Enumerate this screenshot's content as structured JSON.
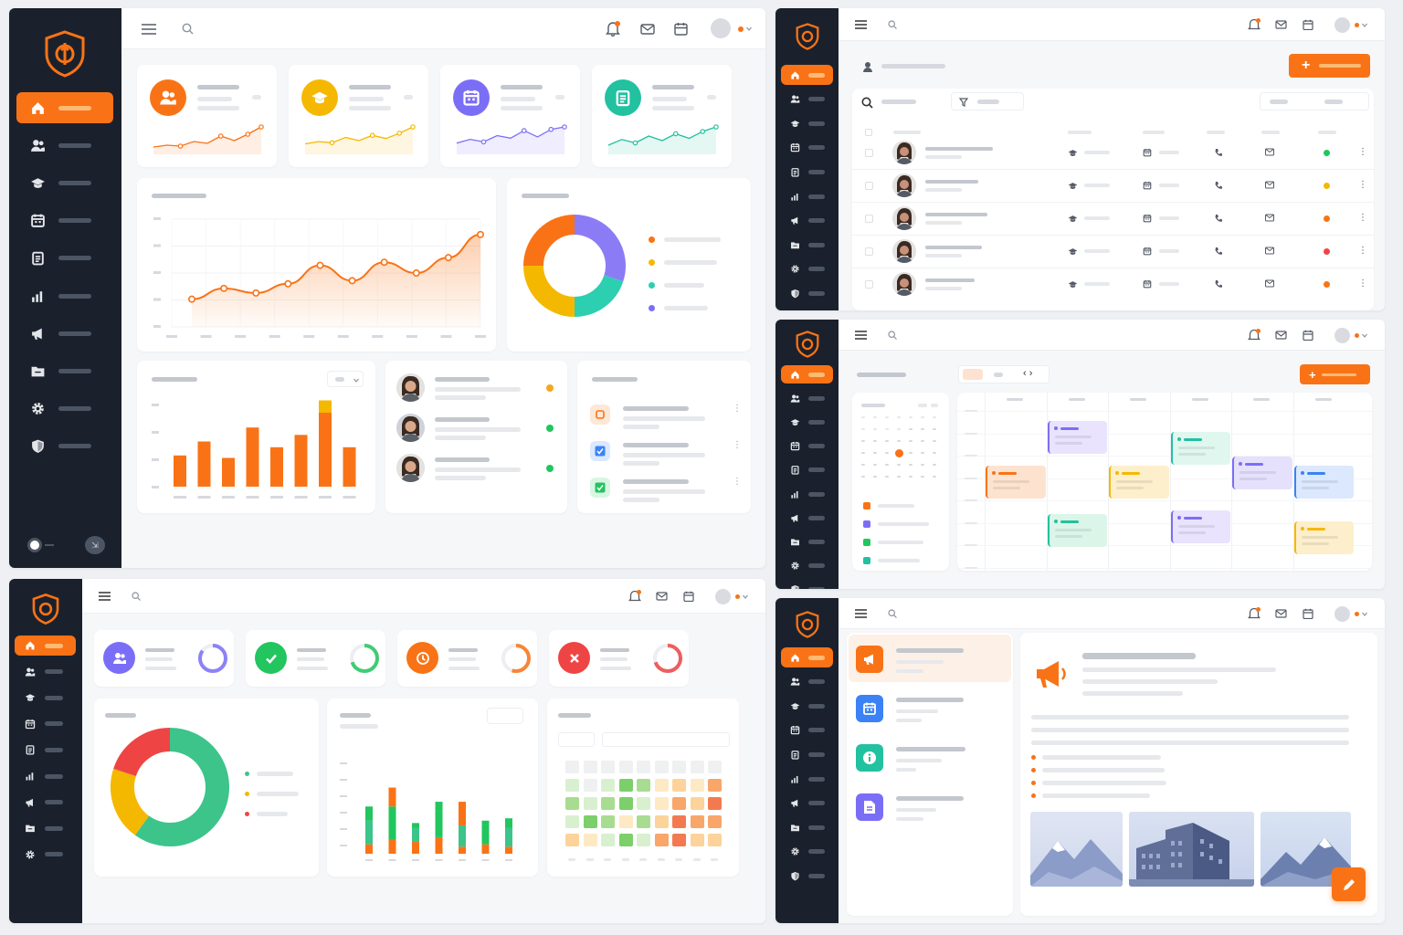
{
  "colors": {
    "accent": "#f97316",
    "sidebar": "#1b212c",
    "green": "#22c55e",
    "yellow": "#f5b800",
    "purple": "#7b6ef6",
    "teal": "#22c1a0",
    "red": "#ef4444",
    "blue": "#3b82f6"
  },
  "icons": [
    "home-icon",
    "users-icon",
    "graduation-cap-icon",
    "calendar-icon",
    "clipboard-icon",
    "bar-chart-icon",
    "megaphone-icon",
    "folder-icon",
    "gear-icon",
    "shield-icon",
    "bell-icon",
    "mail-icon",
    "search-icon",
    "menu-icon"
  ],
  "dashboard": {
    "stat_sparklines": [
      [
        8,
        10,
        9,
        14,
        12,
        20,
        15,
        22,
        30
      ],
      [
        10,
        12,
        11,
        16,
        13,
        18,
        15,
        20,
        26
      ],
      [
        9,
        12,
        10,
        15,
        13,
        19,
        14,
        20,
        22
      ],
      [
        8,
        13,
        10,
        16,
        12,
        18,
        14,
        20,
        24
      ]
    ],
    "line_chart": {
      "values": [
        18,
        25,
        22,
        28,
        40,
        30,
        42,
        35,
        45,
        60
      ],
      "ylim": [
        0,
        70
      ]
    },
    "donut": {
      "values": [
        30,
        20,
        25,
        25
      ],
      "colors": [
        "#8b7cf6",
        "#2ccfb0",
        "#f5b800",
        "#f97316"
      ]
    },
    "bar_chart": {
      "values": [
        38,
        55,
        35,
        72,
        48,
        63,
        90,
        48
      ],
      "accent_values": [
        0,
        0,
        0,
        0,
        0,
        0,
        15,
        0
      ],
      "ylim": [
        0,
        100
      ]
    },
    "list_status": [
      "#f5a623",
      "#22c55e",
      "#22c55e"
    ]
  },
  "directory": {
    "row_status": [
      "#22c55e",
      "#f5b800",
      "#f97316",
      "#ef4444",
      "#f97316"
    ]
  },
  "attendance": {
    "stat_colors": [
      "#7b6ef6",
      "#22c55e",
      "#f97316",
      "#ef4444"
    ],
    "donut": {
      "values": [
        60,
        20,
        20
      ],
      "colors": [
        "#3cc48a",
        "#f5b800",
        "#ef4444"
      ]
    },
    "stacked_bars": [
      [
        20,
        50,
        30
      ],
      [
        30,
        70,
        40
      ],
      [
        25,
        30,
        10
      ],
      [
        35,
        55,
        20
      ],
      [
        15,
        45,
        50
      ],
      [
        20,
        40,
        10
      ],
      [
        15,
        40,
        20
      ]
    ]
  }
}
